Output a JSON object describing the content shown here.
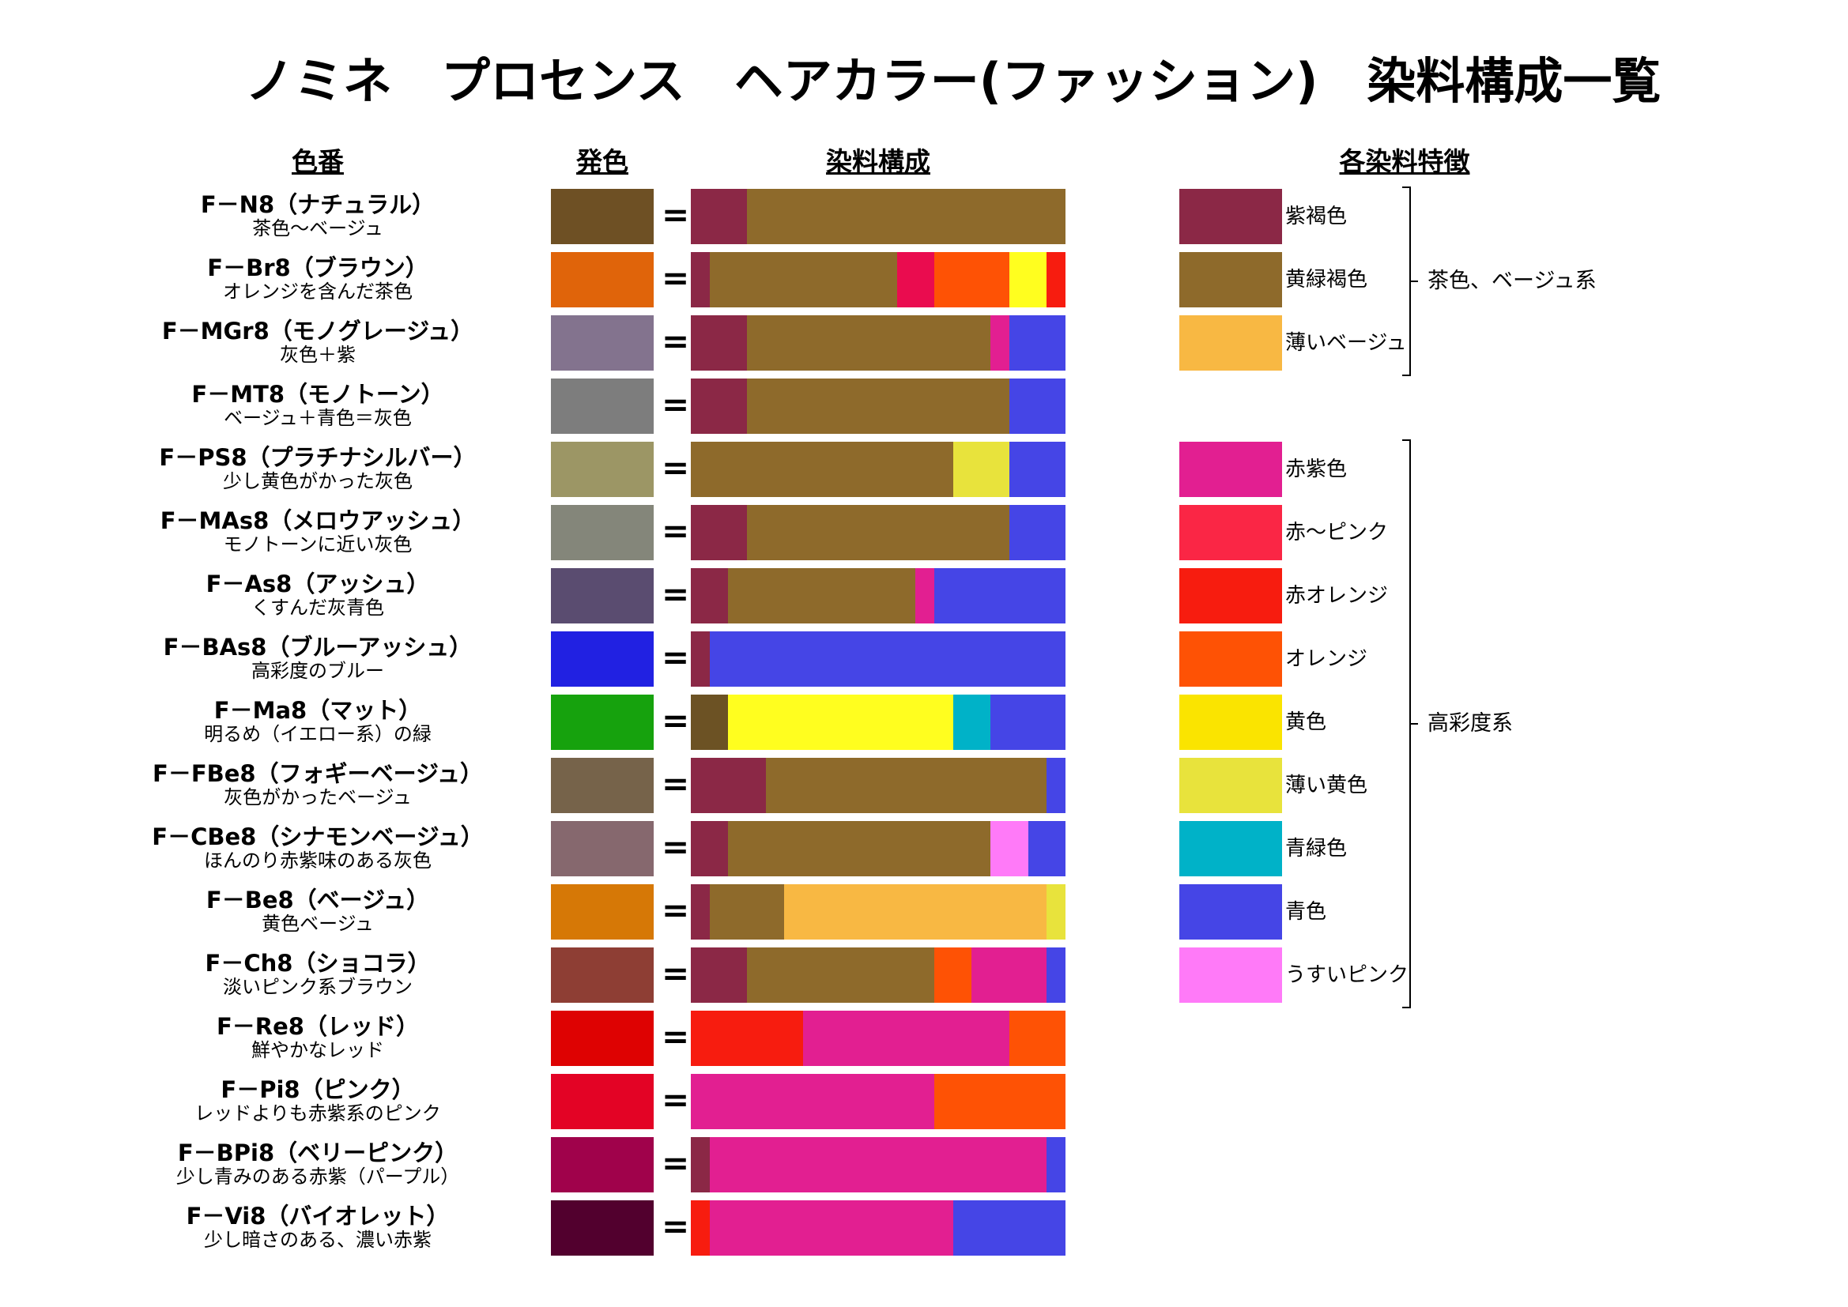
{
  "title": "ノミネ　プロセンス　ヘアカラー(ファッション)　染料構成一覧",
  "headers": {
    "shade": "色番",
    "result": "発色",
    "composition": "染料構成",
    "features": "各染料特徴"
  },
  "equals_sign": "=",
  "colors": {
    "紫褐色": "#8B2846",
    "黄緑褐色": "#8E6A2B",
    "薄いベージュ": "#F8B843",
    "赤紫色": "#E21F91",
    "赤～ピンク": "#FA2645",
    "赤オレンジ": "#F71C0F",
    "オレンジ": "#FE5205",
    "黄色": "#FAE400",
    "薄い黄色": "#E8E33C",
    "青緑色": "#00B2C8",
    "青色": "#4545E6",
    "うすいピンク": "#FF7AF8",
    "レモン": "#FFFE1F",
    "濃茶": "#6C5224",
    "深紅": "#EA0C4F"
  },
  "legend_groups": [
    {
      "label": "茶色、ベージュ系",
      "items": [
        "紫褐色",
        "黄緑褐色",
        "薄いベージュ"
      ]
    },
    {
      "label": "高彩度系",
      "items": [
        "赤紫色",
        "赤～ピンク",
        "赤オレンジ",
        "オレンジ",
        "黄色",
        "薄い黄色",
        "青緑色",
        "青色",
        "うすいピンク"
      ]
    }
  ],
  "chart_data": {
    "type": "bar",
    "stacked": true,
    "xlim": [
      0,
      100
    ],
    "unit": "%",
    "categories": [
      "F－N8（ナチュラル）",
      "F－Br8（ブラウン）",
      "F－MGr8（モノグレージュ）",
      "F－MT8（モノトーン）",
      "F－PS8（プラチナシルバー）",
      "F－MAs8（メロウアッシュ）",
      "F－As8（アッシュ）",
      "F－BAs8（ブルーアッシュ）",
      "F－Ma8（マット）",
      "F－FBe8（フォギーベージュ）",
      "F－CBe8（シナモンベージュ）",
      "F－Be8（ベージュ）",
      "F－Ch8（ショコラ）",
      "F－Re8（レッド）",
      "F－Pi8（ピンク）",
      "F－BPi8（ベリーピンク）",
      "F－Vi8（バイオレット）"
    ],
    "rows": [
      {
        "name": "F－N8（ナチュラル）",
        "desc": "茶色～ベージュ",
        "result_color": "#6E5024",
        "segments": [
          [
            "紫褐色",
            15
          ],
          [
            "黄緑褐色",
            85
          ]
        ]
      },
      {
        "name": "F－Br8（ブラウン）",
        "desc": "オレンジを含んだ茶色",
        "result_color": "#E0640A",
        "segments": [
          [
            "紫褐色",
            5
          ],
          [
            "黄緑褐色",
            50
          ],
          [
            "深紅",
            10
          ],
          [
            "オレンジ",
            20
          ],
          [
            "レモン",
            10
          ],
          [
            "赤オレンジ",
            5
          ]
        ]
      },
      {
        "name": "F－MGr8（モノグレージュ）",
        "desc": "灰色＋紫",
        "result_color": "#83738E",
        "segments": [
          [
            "紫褐色",
            15
          ],
          [
            "黄緑褐色",
            65
          ],
          [
            "赤紫色",
            5
          ],
          [
            "青色",
            15
          ]
        ]
      },
      {
        "name": "F－MT8（モノトーン）",
        "desc": "ベージュ＋青色＝灰色",
        "result_color": "#7D7D7D",
        "segments": [
          [
            "紫褐色",
            15
          ],
          [
            "黄緑褐色",
            70
          ],
          [
            "青色",
            15
          ]
        ]
      },
      {
        "name": "F－PS8（プラチナシルバー）",
        "desc": "少し黄色がかった灰色",
        "result_color": "#9C9665",
        "segments": [
          [
            "黄緑褐色",
            70
          ],
          [
            "薄い黄色",
            15
          ],
          [
            "青色",
            15
          ]
        ]
      },
      {
        "name": "F－MAs8（メロウアッシュ）",
        "desc": "モノトーンに近い灰色",
        "result_color": "#84867A",
        "segments": [
          [
            "紫褐色",
            15
          ],
          [
            "黄緑褐色",
            70
          ],
          [
            "青色",
            15
          ]
        ]
      },
      {
        "name": "F－As8（アッシュ）",
        "desc": "くすんだ灰青色",
        "result_color": "#5A4C70",
        "segments": [
          [
            "紫褐色",
            10
          ],
          [
            "黄緑褐色",
            50
          ],
          [
            "赤紫色",
            5
          ],
          [
            "青色",
            35
          ]
        ]
      },
      {
        "name": "F－BAs8（ブルーアッシュ）",
        "desc": "高彩度のブルー",
        "result_color": "#2121E2",
        "segments": [
          [
            "紫褐色",
            5
          ],
          [
            "青色",
            95
          ]
        ]
      },
      {
        "name": "F－Ma8（マット）",
        "desc": "明るめ（イエロー系）の緑",
        "result_color": "#16A20D",
        "segments": [
          [
            "濃茶",
            10
          ],
          [
            "レモン",
            60
          ],
          [
            "青緑色",
            10
          ],
          [
            "青色",
            20
          ]
        ]
      },
      {
        "name": "F－FBe8（フォギーベージュ）",
        "desc": "灰色がかったベージュ",
        "result_color": "#76634A",
        "segments": [
          [
            "紫褐色",
            20
          ],
          [
            "黄緑褐色",
            75
          ],
          [
            "青色",
            5
          ]
        ]
      },
      {
        "name": "F－CBe8（シナモンベージュ）",
        "desc": "ほんのり赤紫味のある灰色",
        "result_color": "#86686E",
        "segments": [
          [
            "紫褐色",
            10
          ],
          [
            "黄緑褐色",
            70
          ],
          [
            "うすいピンク",
            10
          ],
          [
            "青色",
            10
          ]
        ]
      },
      {
        "name": "F－Be8（ベージュ）",
        "desc": "黄色ベージュ",
        "result_color": "#D67806",
        "segments": [
          [
            "紫褐色",
            5
          ],
          [
            "黄緑褐色",
            20
          ],
          [
            "薄いベージュ",
            70
          ],
          [
            "薄い黄色",
            5
          ]
        ]
      },
      {
        "name": "F－Ch8（ショコラ）",
        "desc": "淡いピンク系ブラウン",
        "result_color": "#8E3E34",
        "segments": [
          [
            "紫褐色",
            15
          ],
          [
            "黄緑褐色",
            50
          ],
          [
            "オレンジ",
            10
          ],
          [
            "赤紫色",
            20
          ],
          [
            "青色",
            5
          ]
        ]
      },
      {
        "name": "F－Re8（レッド）",
        "desc": "鮮やかなレッド",
        "result_color": "#DE0202",
        "segments": [
          [
            "赤オレンジ",
            30
          ],
          [
            "赤紫色",
            55
          ],
          [
            "オレンジ",
            15
          ]
        ]
      },
      {
        "name": "F－Pi8（ピンク）",
        "desc": "レッドよりも赤紫系のピンク",
        "result_color": "#E30325",
        "segments": [
          [
            "赤紫色",
            65
          ],
          [
            "オレンジ",
            35
          ]
        ]
      },
      {
        "name": "F－BPi8（ベリーピンク）",
        "desc": "少し青みのある赤紫（パープル）",
        "result_color": "#A0024B",
        "segments": [
          [
            "紫褐色",
            5
          ],
          [
            "赤紫色",
            90
          ],
          [
            "青色",
            5
          ]
        ]
      },
      {
        "name": "F－Vi8（バイオレット）",
        "desc": "少し暗さのある、濃い赤紫",
        "result_color": "#52002E",
        "segments": [
          [
            "赤オレンジ",
            5
          ],
          [
            "赤紫色",
            65
          ],
          [
            "青色",
            30
          ]
        ]
      }
    ]
  }
}
